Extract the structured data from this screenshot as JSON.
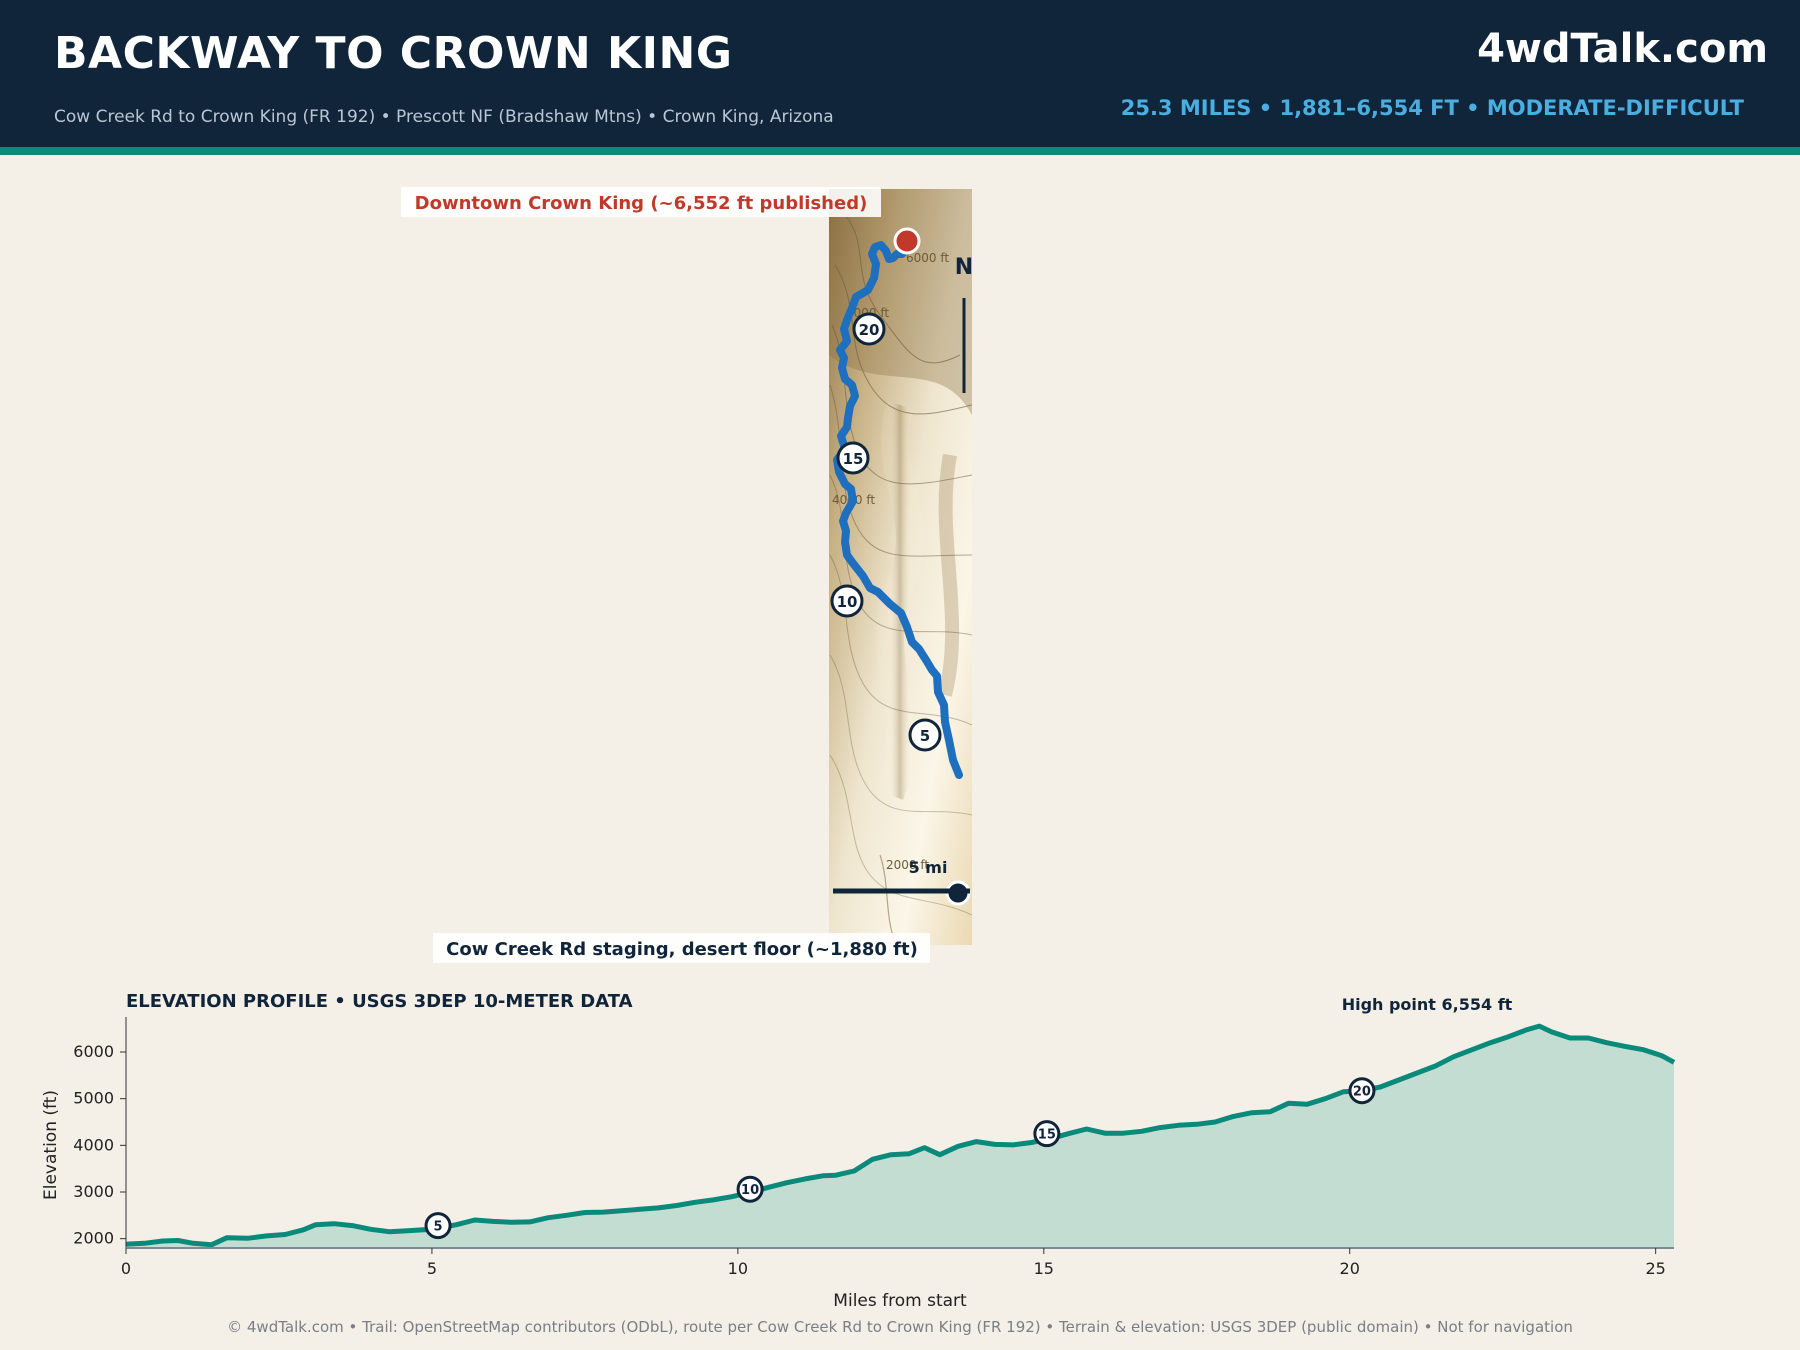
{
  "header": {
    "title": "BACKWAY TO CROWN KING",
    "subtitle": "Cow Creek Rd to Crown King (FR 192)  •  Prescott NF (Bradshaw Mtns)  •  Crown King, Arizona",
    "brand": "4wdTalk.com",
    "stats": "25.3 MILES  •  1,881–6,554 FT  •  MODERATE-DIFFICULT"
  },
  "map": {
    "end_label": "Downtown Crown King (~6,552 ft published)",
    "start_label": "Cow Creek Rd staging, desert floor (~1,880 ft)",
    "north_label": "N",
    "scale_label": "5 mi",
    "contour_labels": [
      "6000 ft",
      "6000 ft",
      "4000 ft",
      "2000 ft"
    ],
    "mile_markers": [
      "20",
      "15",
      "10",
      "5"
    ],
    "colors": {
      "route": "#1f6fbf",
      "end_marker": "#c0392b",
      "start_marker": "#11253a"
    }
  },
  "chart_data": {
    "type": "area",
    "title": "ELEVATION PROFILE  •  USGS 3DEP 10-METER DATA",
    "xlabel": "Miles from start",
    "ylabel": "Elevation (ft)",
    "xlim": [
      0,
      25.3
    ],
    "ylim": [
      1800,
      6750
    ],
    "xticks": [
      0,
      5,
      10,
      15,
      20,
      25
    ],
    "yticks": [
      2000,
      3000,
      4000,
      5000,
      6000
    ],
    "annotation": "High point 6,554 ft",
    "grid": false,
    "color": "#0a8a7a",
    "fill_color": "#c3ddd3",
    "mile_markers": [
      {
        "label": "5",
        "x": 5.1,
        "y": 2280
      },
      {
        "label": "10",
        "x": 10.2,
        "y": 3060
      },
      {
        "label": "15",
        "x": 15.05,
        "y": 4250
      },
      {
        "label": "20",
        "x": 20.2,
        "y": 5170
      }
    ],
    "x": [
      0,
      0.3,
      0.6,
      0.85,
      1.1,
      1.4,
      1.65,
      2.0,
      2.3,
      2.6,
      2.9,
      3.1,
      3.4,
      3.7,
      4.0,
      4.3,
      4.6,
      5.0,
      5.4,
      5.7,
      6.0,
      6.3,
      6.6,
      6.9,
      7.2,
      7.5,
      7.8,
      8.1,
      8.4,
      8.7,
      9.0,
      9.3,
      9.6,
      9.9,
      10.2,
      10.5,
      10.8,
      11.1,
      11.4,
      11.6,
      11.9,
      12.2,
      12.5,
      12.8,
      13.05,
      13.3,
      13.6,
      13.9,
      14.2,
      14.5,
      14.8,
      15.1,
      15.4,
      15.7,
      16.0,
      16.3,
      16.6,
      16.9,
      17.2,
      17.5,
      17.8,
      18.1,
      18.4,
      18.7,
      19.0,
      19.3,
      19.6,
      19.9,
      20.2,
      20.5,
      20.8,
      21.1,
      21.4,
      21.7,
      22.0,
      22.3,
      22.6,
      22.9,
      23.1,
      23.3,
      23.6,
      23.9,
      24.2,
      24.5,
      24.8,
      25.1,
      25.3
    ],
    "y": [
      1881,
      1900,
      1950,
      1960,
      1900,
      1870,
      2020,
      2010,
      2060,
      2090,
      2190,
      2300,
      2320,
      2280,
      2200,
      2150,
      2170,
      2200,
      2300,
      2400,
      2370,
      2350,
      2360,
      2450,
      2500,
      2560,
      2570,
      2600,
      2630,
      2660,
      2710,
      2780,
      2830,
      2900,
      2990,
      3100,
      3200,
      3280,
      3350,
      3360,
      3450,
      3700,
      3800,
      3820,
      3950,
      3800,
      3980,
      4080,
      4020,
      4010,
      4060,
      4140,
      4250,
      4350,
      4260,
      4260,
      4300,
      4380,
      4430,
      4450,
      4500,
      4620,
      4700,
      4720,
      4900,
      4880,
      5000,
      5150,
      5170,
      5250,
      5400,
      5550,
      5700,
      5900,
      6050,
      6200,
      6330,
      6480,
      6554,
      6430,
      6300,
      6300,
      6200,
      6120,
      6050,
      5920,
      5780
    ]
  },
  "footer": "© 4wdTalk.com  •  Trail: OpenStreetMap contributors (ODbL), route per Cow Creek Rd to Crown King (FR 192)  •  Terrain & elevation: USGS 3DEP (public domain)  •  Not for navigation"
}
